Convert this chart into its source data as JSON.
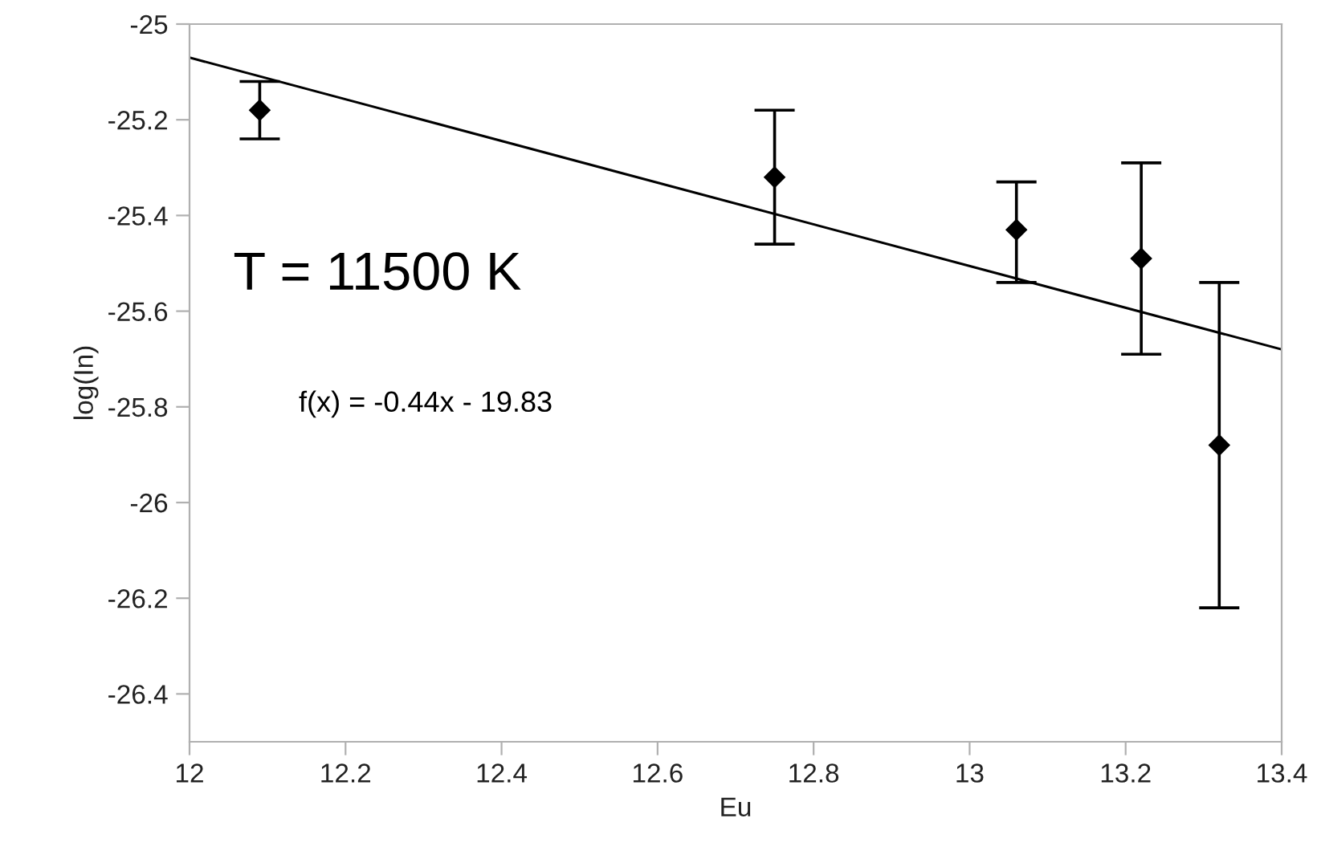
{
  "chart_data": {
    "type": "scatter",
    "xlabel": "Eu",
    "ylabel": "log(In)",
    "annotations": [
      "T = 11500 K",
      "f(x) = -0.44x - 19.83"
    ],
    "series": [
      {
        "color": "#000000",
        "marker": "diamond",
        "x": [
          12.09,
          12.75,
          13.06,
          13.22,
          13.32
        ],
        "values": [
          -25.18,
          -25.32,
          -25.43,
          -25.49,
          -25.88
        ],
        "errors": [
          [
            -25.24,
            -25.12
          ],
          [
            -25.46,
            -25.18
          ],
          [
            -25.54,
            -25.33
          ],
          [
            -25.69,
            -25.29
          ],
          [
            -26.22,
            -25.54
          ]
        ]
      },
      {
        "type": "line",
        "color": "#000000",
        "marker": "none",
        "line_style": "solid",
        "x": [
          12,
          13.4
        ],
        "values": [
          -25.07,
          -25.68
        ]
      }
    ],
    "xlim": [
      12,
      13.4
    ],
    "xticks": [
      12,
      12.2,
      12.4,
      12.6,
      12.8,
      13,
      13.2,
      13.4
    ],
    "ylim": [
      -26.5,
      -25
    ],
    "yticks": [
      -25,
      -25.2,
      -25.4,
      -25.6,
      -25.8,
      -26,
      -26.2,
      -26.4
    ],
    "grid": false,
    "legend": false
  }
}
